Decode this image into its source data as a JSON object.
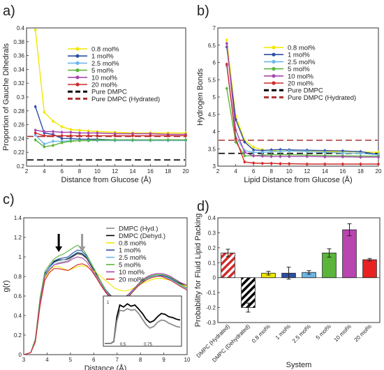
{
  "panels": {
    "a": {
      "label": "a)",
      "colors": {
        "0.8 mol%": "#f0e800",
        "1 mol%": "#2d4fa3",
        "2.5 mol%": "#6fb6e8",
        "5 mol%": "#5bb53a",
        "10 mol%": "#a648ad",
        "20 mol%": "#cf2a2a",
        "Pure DMPC": "#000000",
        "Pure DMPC (Hydrated)": "#a83232"
      }
    },
    "b": {
      "label": "b)"
    },
    "c": {
      "label": "c)"
    },
    "d": {
      "label": "d)"
    }
  },
  "chart_data": [
    {
      "id": "a",
      "type": "line",
      "xlabel": "Distance from Glucose (Å)",
      "ylabel": "Proportion of Gauche Dihedrals",
      "xlim": [
        2,
        20
      ],
      "ylim": [
        0.2,
        0.4
      ],
      "xticks": [
        "2",
        "4",
        "6",
        "8",
        "10",
        "12",
        "14",
        "16",
        "18",
        "20"
      ],
      "yticks": [
        "0.2",
        "0.22",
        "0.24",
        "0.26",
        "0.28",
        "0.3",
        "0.32",
        "0.34",
        "0.36",
        "0.38",
        "0.4"
      ],
      "x": [
        3,
        4,
        5,
        6,
        7,
        8,
        9,
        10,
        12,
        14,
        16,
        18,
        20
      ],
      "series": [
        {
          "name": "0.8 mol%",
          "color": "#f0e800",
          "values": [
            0.397,
            0.278,
            0.265,
            0.257,
            0.253,
            0.252,
            0.251,
            0.25,
            0.249,
            0.248,
            0.248,
            0.248,
            0.248
          ]
        },
        {
          "name": "1 mol%",
          "color": "#2d4fa3",
          "values": [
            0.286,
            0.248,
            0.246,
            0.24,
            0.24,
            0.239,
            0.239,
            0.239,
            0.238,
            0.238,
            0.238,
            0.238,
            0.238
          ]
        },
        {
          "name": "2.5 mol%",
          "color": "#6fb6e8",
          "values": [
            0.245,
            0.232,
            0.236,
            0.236,
            0.237,
            0.237,
            0.237,
            0.237,
            0.237,
            0.237,
            0.237,
            0.237,
            0.237
          ]
        },
        {
          "name": "5 mol%",
          "color": "#5bb53a",
          "values": [
            0.238,
            0.228,
            0.23,
            0.234,
            0.236,
            0.237,
            0.237,
            0.238,
            0.238,
            0.238,
            0.238,
            0.238,
            0.238
          ]
        },
        {
          "name": "10 mol%",
          "color": "#a648ad",
          "values": [
            0.252,
            0.25,
            0.25,
            0.249,
            0.249,
            0.248,
            0.248,
            0.248,
            0.247,
            0.247,
            0.247,
            0.246,
            0.246
          ]
        },
        {
          "name": "20 mol%",
          "color": "#cf2a2a",
          "values": [
            0.248,
            0.244,
            0.244,
            0.244,
            0.244,
            0.244,
            0.244,
            0.244,
            0.244,
            0.244,
            0.244,
            0.244,
            0.244
          ]
        }
      ],
      "hlines": [
        {
          "name": "Pure DMPC",
          "color": "#000000",
          "y": 0.209
        },
        {
          "name": "Pure DMPC (Hydrated)",
          "color": "#a83232",
          "y": 0.243
        }
      ]
    },
    {
      "id": "b",
      "type": "line",
      "xlabel": "Lipid Distance from Glucose (Å)",
      "ylabel": "Hydrogen Bonds",
      "xlim": [
        2,
        20
      ],
      "ylim": [
        3,
        7
      ],
      "xticks": [
        "2",
        "4",
        "6",
        "8",
        "10",
        "12",
        "14",
        "16",
        "18",
        "20"
      ],
      "yticks": [
        "3",
        "3.5",
        "4",
        "4.5",
        "5",
        "5.5",
        "6",
        "6.5",
        "7"
      ],
      "x": [
        3,
        4,
        5,
        6,
        7,
        8,
        9,
        10,
        12,
        14,
        16,
        18,
        20
      ],
      "series": [
        {
          "name": "0.8 mol%",
          "color": "#f0e800",
          "values": [
            6.65,
            4.45,
            3.75,
            3.55,
            3.47,
            3.45,
            3.44,
            3.44,
            3.43,
            3.42,
            3.42,
            3.41,
            3.4
          ]
        },
        {
          "name": "1 mol%",
          "color": "#2d4fa3",
          "values": [
            6.45,
            4.35,
            3.7,
            3.47,
            3.45,
            3.47,
            3.48,
            3.47,
            3.46,
            3.45,
            3.44,
            3.42,
            3.34
          ]
        },
        {
          "name": "2.5 mol%",
          "color": "#6fb6e8",
          "values": [
            5.9,
            3.85,
            3.45,
            3.4,
            3.4,
            3.42,
            3.43,
            3.44,
            3.42,
            3.4,
            3.38,
            3.37,
            3.33
          ]
        },
        {
          "name": "5 mol%",
          "color": "#5bb53a",
          "values": [
            5.25,
            3.7,
            3.3,
            3.3,
            3.32,
            3.33,
            3.33,
            3.33,
            3.32,
            3.31,
            3.3,
            3.29,
            3.29
          ]
        },
        {
          "name": "10 mol%",
          "color": "#a648ad",
          "values": [
            6.55,
            4.05,
            3.4,
            3.3,
            3.29,
            3.28,
            3.28,
            3.28,
            3.28,
            3.27,
            3.27,
            3.26,
            3.26
          ]
        },
        {
          "name": "20 mol%",
          "color": "#cf2a2a",
          "values": [
            5.95,
            3.8,
            3.12,
            3.09,
            3.08,
            3.08,
            3.07,
            3.07,
            3.06,
            3.06,
            3.06,
            3.06,
            3.06
          ]
        }
      ],
      "hlines": [
        {
          "name": "Pure DMPC",
          "color": "#000000",
          "y": 3.37
        },
        {
          "name": "Pure DMPC (Hydrated)",
          "color": "#a83232",
          "y": 3.75
        }
      ]
    },
    {
      "id": "c",
      "type": "line",
      "xlabel": "Distance (Å)",
      "ylabel": "g(r)",
      "xlim": [
        3,
        10
      ],
      "ylim": [
        0,
        1.4
      ],
      "xticks": [
        "3",
        "4",
        "5",
        "6",
        "7",
        "8",
        "9",
        "10"
      ],
      "yticks": [
        "0",
        "0.2",
        "0.4",
        "0.6",
        "0.8",
        "1",
        "1.2",
        "1.4"
      ],
      "x": [
        3,
        3.3,
        3.5,
        3.7,
        3.9,
        4.1,
        4.3,
        4.5,
        4.7,
        4.9,
        5.1,
        5.3,
        5.5,
        5.7,
        5.9,
        6.1,
        6.3,
        6.5,
        6.7,
        6.9,
        7.1,
        7.3,
        7.5,
        7.7,
        7.9,
        8.1,
        8.3,
        8.5,
        8.7,
        8.9,
        9.1,
        9.3,
        9.5,
        9.7,
        10
      ],
      "series": [
        {
          "name": "DMPC (Hyd.)",
          "color": "#8c8c8c",
          "values": [
            0,
            0.02,
            0.15,
            0.55,
            0.8,
            0.86,
            0.92,
            0.94,
            0.95,
            0.96,
            1.0,
            1.03,
            1.02,
            0.98,
            0.9,
            0.82,
            0.74,
            0.66,
            0.6,
            0.56,
            0.55,
            0.57,
            0.61,
            0.66,
            0.71,
            0.75,
            0.78,
            0.8,
            0.81,
            0.81,
            0.8,
            0.78,
            0.75,
            0.72,
            0.68
          ]
        },
        {
          "name": "DMPC (Dehyd.)",
          "color": "#000000",
          "values": [
            0,
            0.02,
            0.16,
            0.58,
            0.83,
            0.89,
            0.95,
            0.97,
            0.97,
            0.98,
            1.01,
            1.04,
            1.03,
            0.99,
            0.91,
            0.83,
            0.75,
            0.67,
            0.61,
            0.57,
            0.56,
            0.58,
            0.62,
            0.67,
            0.72,
            0.76,
            0.79,
            0.8,
            0.81,
            0.81,
            0.8,
            0.78,
            0.76,
            0.73,
            0.7
          ]
        },
        {
          "name": "0.8 mol%",
          "color": "#f0e800",
          "values": [
            0,
            0.02,
            0.14,
            0.52,
            0.78,
            0.86,
            0.9,
            0.9,
            0.88,
            0.86,
            0.88,
            0.9,
            0.91,
            0.9,
            0.87,
            0.84,
            0.8,
            0.76,
            0.72,
            0.68,
            0.66,
            0.65,
            0.66,
            0.68,
            0.71,
            0.73,
            0.75,
            0.77,
            0.78,
            0.78,
            0.77,
            0.76,
            0.74,
            0.72,
            0.7
          ]
        },
        {
          "name": "1 mol%",
          "color": "#2d4fa3",
          "values": [
            0,
            0.02,
            0.15,
            0.56,
            0.82,
            0.9,
            0.96,
            0.98,
            0.99,
            1.0,
            1.04,
            1.07,
            1.06,
            1.01,
            0.93,
            0.84,
            0.75,
            0.66,
            0.59,
            0.55,
            0.54,
            0.56,
            0.6,
            0.65,
            0.71,
            0.75,
            0.78,
            0.8,
            0.81,
            0.81,
            0.8,
            0.78,
            0.75,
            0.72,
            0.68
          ]
        },
        {
          "name": "2.5 mol%",
          "color": "#6fb6e8",
          "values": [
            0,
            0.02,
            0.15,
            0.55,
            0.81,
            0.89,
            0.94,
            0.96,
            0.97,
            0.99,
            1.02,
            1.05,
            1.04,
            1.0,
            0.92,
            0.84,
            0.75,
            0.67,
            0.6,
            0.56,
            0.55,
            0.57,
            0.61,
            0.66,
            0.71,
            0.75,
            0.78,
            0.8,
            0.81,
            0.8,
            0.79,
            0.77,
            0.74,
            0.71,
            0.67
          ]
        },
        {
          "name": "5 mol%",
          "color": "#5bb53a",
          "values": [
            0,
            0.02,
            0.16,
            0.58,
            0.85,
            0.92,
            0.98,
            1.01,
            1.03,
            1.06,
            1.09,
            1.12,
            1.09,
            1.02,
            0.93,
            0.84,
            0.75,
            0.66,
            0.59,
            0.54,
            0.53,
            0.55,
            0.59,
            0.65,
            0.71,
            0.76,
            0.79,
            0.81,
            0.82,
            0.82,
            0.81,
            0.79,
            0.76,
            0.72,
            0.68
          ]
        },
        {
          "name": "10 mol%",
          "color": "#a648ad",
          "values": [
            0,
            0.02,
            0.14,
            0.54,
            0.8,
            0.87,
            0.92,
            0.93,
            0.94,
            0.95,
            0.98,
            1.0,
            0.99,
            0.95,
            0.88,
            0.8,
            0.72,
            0.65,
            0.59,
            0.56,
            0.55,
            0.57,
            0.62,
            0.67,
            0.72,
            0.77,
            0.8,
            0.82,
            0.83,
            0.83,
            0.82,
            0.8,
            0.77,
            0.74,
            0.71
          ]
        },
        {
          "name": "20 mol%",
          "color": "#cf2a2a",
          "values": [
            0,
            0.02,
            0.13,
            0.5,
            0.76,
            0.84,
            0.88,
            0.88,
            0.87,
            0.86,
            0.89,
            0.92,
            0.93,
            0.91,
            0.86,
            0.79,
            0.71,
            0.64,
            0.58,
            0.55,
            0.54,
            0.56,
            0.6,
            0.65,
            0.7,
            0.74,
            0.77,
            0.79,
            0.8,
            0.8,
            0.78,
            0.76,
            0.73,
            0.7,
            0.66
          ]
        }
      ],
      "arrows": [
        {
          "x": 4.5,
          "color": "#000000"
        },
        {
          "x": 5.5,
          "color": "#9a9a9a"
        }
      ],
      "inset": {
        "xticks": [
          "0.5",
          "0.75"
        ],
        "yticks": [
          "1"
        ],
        "series": [
          {
            "name": "DMPC (Dehyd.)",
            "color": "#000000",
            "x": [
              0,
              0.08,
              0.12,
              0.16,
              0.2,
              0.25,
              0.3,
              0.35,
              0.4,
              0.45,
              0.5,
              0.55,
              0.6,
              0.65,
              0.7,
              0.75,
              0.8,
              0.85,
              0.9,
              0.95,
              1.0
            ],
            "values": [
              0,
              0,
              0.05,
              0.65,
              0.95,
              0.9,
              0.98,
              0.92,
              0.95,
              0.85,
              0.74,
              0.6,
              0.52,
              0.56,
              0.66,
              0.74,
              0.72,
              0.66,
              0.64,
              0.6,
              0.58
            ]
          },
          {
            "name": "DMPC (Hyd.)",
            "color": "#8c8c8c",
            "x": [
              0,
              0.08,
              0.12,
              0.16,
              0.2,
              0.25,
              0.3,
              0.35,
              0.4,
              0.45,
              0.5,
              0.55,
              0.6,
              0.65,
              0.7,
              0.75,
              0.8,
              0.85,
              0.9,
              0.95,
              1.0
            ],
            "values": [
              0,
              0,
              0.04,
              0.55,
              0.82,
              0.8,
              0.86,
              0.82,
              0.84,
              0.74,
              0.6,
              0.46,
              0.38,
              0.42,
              0.52,
              0.58,
              0.56,
              0.5,
              0.46,
              0.42,
              0.4
            ]
          }
        ]
      }
    },
    {
      "id": "d",
      "type": "bar",
      "xlabel": "System",
      "ylabel": "Probability for Fluid Lipid Packing",
      "ylim": [
        -0.3,
        0.4
      ],
      "yticks": [
        "-0.3",
        "-0.2",
        "-0.1",
        "0",
        "0.1",
        "0.2",
        "0.3",
        "0.4"
      ],
      "categories": [
        "DMPC (Hydrated)",
        "DMPC (Dehydrated)",
        "0.8 mol%",
        "1 mol%",
        "2.5 mol%",
        "5 mol%",
        "10 mol%",
        "20 mol%"
      ],
      "values": [
        0.165,
        -0.2,
        0.03,
        0.03,
        0.035,
        0.165,
        0.32,
        0.12
      ],
      "errors": [
        0.025,
        0.03,
        0.012,
        0.04,
        0.012,
        0.028,
        0.04,
        0.008
      ],
      "colors": [
        "#cf2a2a",
        "#000000",
        "#f0e800",
        "#2d4fa3",
        "#6fb6e8",
        "#5bb53a",
        "#b845b0",
        "#e82222"
      ],
      "hatched": [
        true,
        true,
        false,
        false,
        false,
        false,
        false,
        false
      ]
    }
  ]
}
